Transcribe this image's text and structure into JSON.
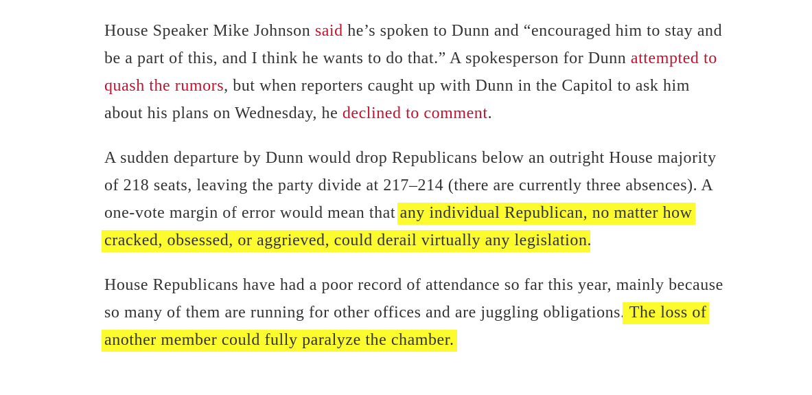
{
  "paragraphs": [
    {
      "segments": [
        {
          "text": "House Speaker Mike Johnson "
        },
        {
          "text": "said",
          "style": "link"
        },
        {
          "text": " he’s spoken to Dunn and “encouraged him to stay and be a part of this, and I think he wants to do that.” A spokesperson for Dunn "
        },
        {
          "text": "attempted to quash the rumors",
          "style": "link"
        },
        {
          "text": ", but when reporters caught up with Dunn in the Capitol to ask him about his plans on Wednesday, he "
        },
        {
          "text": "declined to comment",
          "style": "link"
        },
        {
          "text": "."
        }
      ]
    },
    {
      "segments": [
        {
          "text": "A sudden departure by Dunn would drop Republicans below an outright House majority of 218 seats, leaving the party divide at 217–214 (there are currently three absences). A one-vote margin of error would mean that "
        },
        {
          "text": "any individual Republican, no matter how cracked, obsessed, or aggrieved, could derail virtually any legislation",
          "style": "highlight"
        },
        {
          "text": "."
        }
      ]
    },
    {
      "segments": [
        {
          "text": "House Republicans have had a poor record of attendance so far this year, mainly because so many of them are running for other offices and are juggling obligations."
        },
        {
          "text": " The loss of another member could fully paralyze the chamber.",
          "style": "highlight"
        }
      ]
    }
  ]
}
